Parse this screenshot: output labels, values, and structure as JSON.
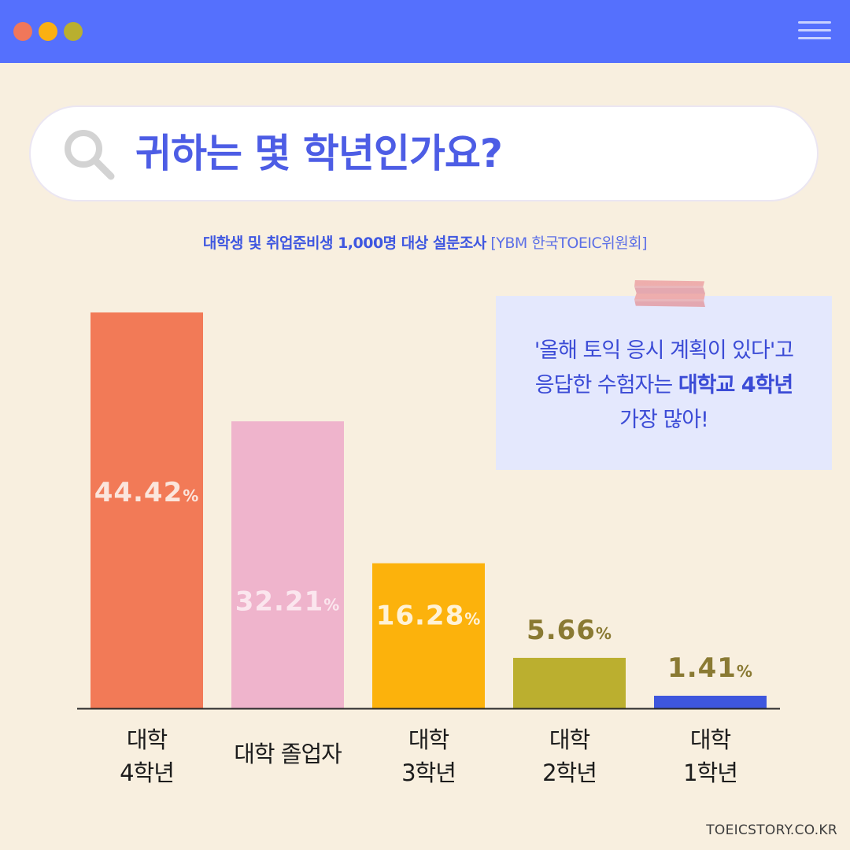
{
  "window": {
    "colors": {
      "bar": "#5570fd",
      "dot_red": "#f0775a",
      "dot_yellow": "#fbb012",
      "dot_green": "#b9af2f"
    }
  },
  "search": {
    "question": "귀하는 몇 학년인가요?",
    "icon": "search-icon"
  },
  "subtitle": {
    "main": "대학생 및 취업준비생 1,000명 대상 설문조사",
    "source": "[YBM 한국TOEIC위원회]"
  },
  "note": {
    "line1": "'올해 토익 응시 계획이 있다'고",
    "line2_prefix": "응답한 수험자는",
    "line2_highlight": "대학교 4학년",
    "line3": "가장 많아!"
  },
  "chart_data": {
    "type": "bar",
    "categories": [
      "대학\n4학년",
      "대학 졸업자",
      "대학\n3학년",
      "대학\n2학년",
      "대학\n1학년"
    ],
    "values": [
      44.42,
      32.21,
      16.28,
      5.66,
      1.41
    ],
    "value_labels": [
      "44.42",
      "32.21",
      "16.28",
      "5.66",
      "1.41"
    ],
    "unit": "%",
    "colors": [
      "#f27a57",
      "#efb4cc",
      "#fcb20c",
      "#bbaf2f",
      "#3e56dd"
    ],
    "ylim": [
      0,
      44.42
    ]
  },
  "footer": {
    "site": "TOEICSTORY.CO.KR"
  }
}
